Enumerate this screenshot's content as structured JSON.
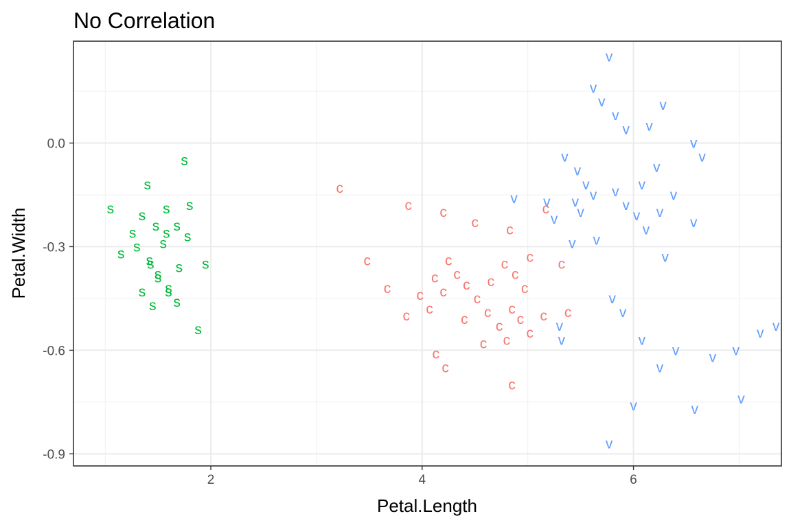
{
  "chart_data": {
    "type": "scatter",
    "title": "No Correlation",
    "xlabel": "Petal.Length",
    "ylabel": "Petal.Width",
    "xlim": [
      0.7,
      7.4
    ],
    "ylim": [
      -0.935,
      0.295
    ],
    "x_ticks": [
      2,
      4,
      6
    ],
    "x_tick_labels": [
      "2",
      "4",
      "6"
    ],
    "y_ticks": [
      0.0,
      -0.3,
      -0.6,
      -0.9
    ],
    "y_tick_labels": [
      "0.0",
      "-0.3",
      "-0.6",
      "-0.9"
    ],
    "x_minor_ticks": [
      1,
      3,
      5,
      7
    ],
    "y_minor_ticks": [
      0.15,
      -0.15,
      -0.45,
      -0.75
    ],
    "grid": true,
    "legend": "none",
    "series": [
      {
        "marker": "s",
        "color": "#00ba38",
        "points": [
          [
            1.75,
            -0.05
          ],
          [
            1.4,
            -0.12
          ],
          [
            1.05,
            -0.19
          ],
          [
            1.35,
            -0.21
          ],
          [
            1.58,
            -0.19
          ],
          [
            1.8,
            -0.18
          ],
          [
            1.48,
            -0.24
          ],
          [
            1.68,
            -0.24
          ],
          [
            1.26,
            -0.26
          ],
          [
            1.58,
            -0.26
          ],
          [
            1.3,
            -0.3
          ],
          [
            1.55,
            -0.29
          ],
          [
            1.78,
            -0.27
          ],
          [
            1.15,
            -0.32
          ],
          [
            1.42,
            -0.34
          ],
          [
            1.43,
            -0.35
          ],
          [
            1.7,
            -0.36
          ],
          [
            1.95,
            -0.35
          ],
          [
            1.5,
            -0.38
          ],
          [
            1.5,
            -0.39
          ],
          [
            1.35,
            -0.43
          ],
          [
            1.6,
            -0.42
          ],
          [
            1.6,
            -0.43
          ],
          [
            1.45,
            -0.47
          ],
          [
            1.68,
            -0.46
          ],
          [
            1.88,
            -0.54
          ]
        ]
      },
      {
        "marker": "c",
        "color": "#f8766d",
        "points": [
          [
            3.22,
            -0.13
          ],
          [
            3.87,
            -0.18
          ],
          [
            4.2,
            -0.2
          ],
          [
            4.5,
            -0.23
          ],
          [
            4.83,
            -0.25
          ],
          [
            5.17,
            -0.19
          ],
          [
            3.48,
            -0.34
          ],
          [
            4.25,
            -0.34
          ],
          [
            4.78,
            -0.35
          ],
          [
            5.02,
            -0.33
          ],
          [
            5.32,
            -0.35
          ],
          [
            4.33,
            -0.38
          ],
          [
            4.12,
            -0.39
          ],
          [
            4.42,
            -0.41
          ],
          [
            4.65,
            -0.4
          ],
          [
            4.88,
            -0.38
          ],
          [
            3.67,
            -0.42
          ],
          [
            4.2,
            -0.43
          ],
          [
            4.97,
            -0.42
          ],
          [
            3.98,
            -0.44
          ],
          [
            4.52,
            -0.45
          ],
          [
            4.07,
            -0.48
          ],
          [
            4.85,
            -0.48
          ],
          [
            3.85,
            -0.5
          ],
          [
            4.4,
            -0.51
          ],
          [
            4.62,
            -0.49
          ],
          [
            4.93,
            -0.51
          ],
          [
            5.15,
            -0.5
          ],
          [
            5.38,
            -0.49
          ],
          [
            4.73,
            -0.53
          ],
          [
            5.02,
            -0.55
          ],
          [
            4.8,
            -0.57
          ],
          [
            4.58,
            -0.58
          ],
          [
            4.13,
            -0.61
          ],
          [
            4.22,
            -0.65
          ],
          [
            4.85,
            -0.7
          ]
        ]
      },
      {
        "marker": "v",
        "color": "#619cff",
        "points": [
          [
            5.77,
            0.25
          ],
          [
            5.62,
            0.16
          ],
          [
            5.7,
            0.12
          ],
          [
            5.83,
            0.08
          ],
          [
            6.28,
            0.11
          ],
          [
            6.15,
            0.05
          ],
          [
            5.93,
            0.04
          ],
          [
            6.57,
            0.0
          ],
          [
            6.65,
            -0.04
          ],
          [
            5.35,
            -0.04
          ],
          [
            5.47,
            -0.08
          ],
          [
            6.22,
            -0.07
          ],
          [
            5.55,
            -0.12
          ],
          [
            5.83,
            -0.14
          ],
          [
            6.08,
            -0.12
          ],
          [
            6.38,
            -0.15
          ],
          [
            4.87,
            -0.16
          ],
          [
            5.18,
            -0.17
          ],
          [
            5.45,
            -0.17
          ],
          [
            5.62,
            -0.15
          ],
          [
            5.93,
            -0.18
          ],
          [
            5.25,
            -0.22
          ],
          [
            5.5,
            -0.2
          ],
          [
            6.03,
            -0.21
          ],
          [
            6.25,
            -0.2
          ],
          [
            6.57,
            -0.23
          ],
          [
            6.12,
            -0.25
          ],
          [
            5.65,
            -0.28
          ],
          [
            5.42,
            -0.29
          ],
          [
            6.3,
            -0.33
          ],
          [
            5.8,
            -0.45
          ],
          [
            5.9,
            -0.49
          ],
          [
            5.3,
            -0.53
          ],
          [
            5.32,
            -0.57
          ],
          [
            6.08,
            -0.57
          ],
          [
            6.4,
            -0.6
          ],
          [
            6.25,
            -0.65
          ],
          [
            6.75,
            -0.62
          ],
          [
            6.97,
            -0.6
          ],
          [
            7.2,
            -0.55
          ],
          [
            7.35,
            -0.53
          ],
          [
            6.0,
            -0.76
          ],
          [
            6.58,
            -0.77
          ],
          [
            7.02,
            -0.74
          ],
          [
            5.77,
            -0.87
          ]
        ]
      }
    ]
  }
}
